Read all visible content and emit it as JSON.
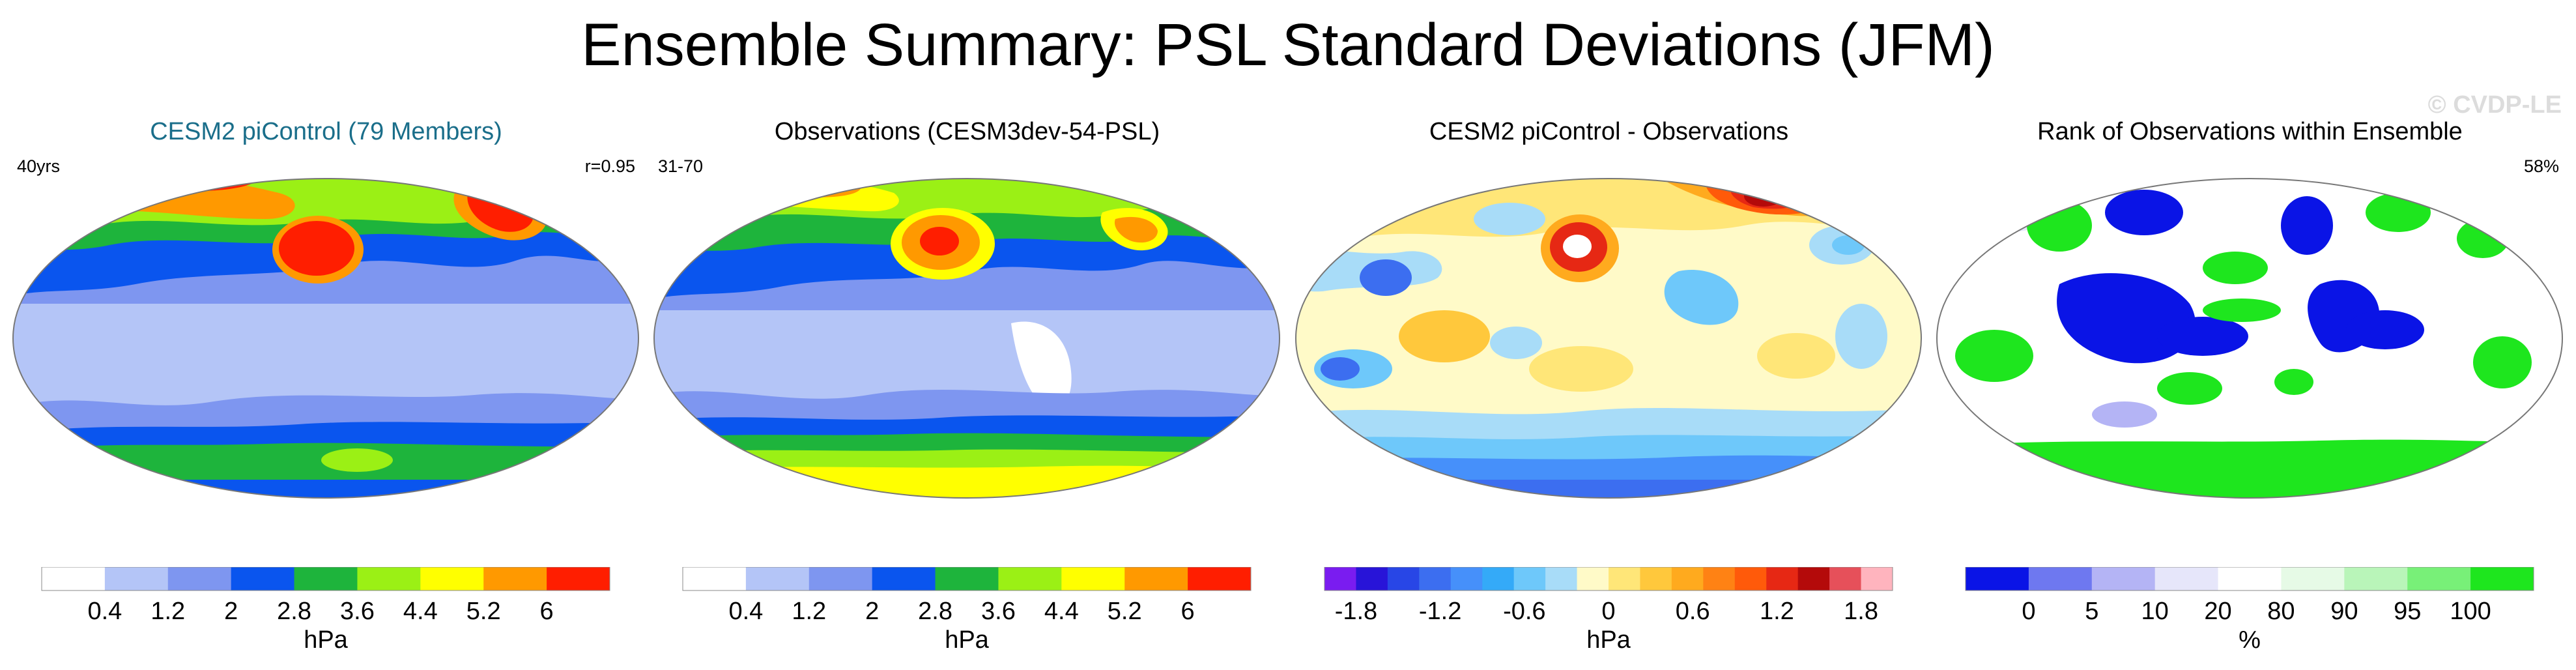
{
  "title": "Ensemble Summary: PSL Standard Deviations (JFM)",
  "watermark": "© CVDP-LE",
  "panels": [
    {
      "title": "CESM2 piControl (79 Members)",
      "left_label": "40yrs",
      "right_label": "r=0.95",
      "colorbar": {
        "colors": [
          "#ffffff",
          "#b4c5f7",
          "#7e96f0",
          "#0a55ee",
          "#1eb43c",
          "#9bf015",
          "#ffff00",
          "#ff9900",
          "#ff1e00"
        ],
        "labels": [
          "0.4",
          "1.2",
          "2",
          "2.8",
          "3.6",
          "4.4",
          "5.2",
          "6"
        ],
        "unit": "hPa"
      }
    },
    {
      "title": "Observations (CESM3dev-54-PSL)",
      "left_label": "31-70",
      "right_label": "",
      "colorbar": {
        "colors": [
          "#ffffff",
          "#b4c5f7",
          "#7e96f0",
          "#0a55ee",
          "#1eb43c",
          "#9bf015",
          "#ffff00",
          "#ff9900",
          "#ff1e00"
        ],
        "labels": [
          "0.4",
          "1.2",
          "2",
          "2.8",
          "3.6",
          "4.4",
          "5.2",
          "6"
        ],
        "unit": "hPa"
      }
    },
    {
      "title": "CESM2 piControl - Observations",
      "left_label": "",
      "right_label": "",
      "colorbar": {
        "colors": [
          "#7a1cf0",
          "#2814d8",
          "#2846e6",
          "#3c6ef0",
          "#4690fa",
          "#34aaf8",
          "#6ec8fa",
          "#a8dcf8",
          "#fffac8",
          "#ffe678",
          "#ffc83c",
          "#ffaa1e",
          "#ff8214",
          "#ff5a0a",
          "#e62814",
          "#b40a0a",
          "#e6505a",
          "#ffb4be"
        ],
        "labels": [
          "-1.8",
          "-1.2",
          "-0.6",
          "0",
          "0.6",
          "1.2",
          "1.8"
        ],
        "unit": "hPa"
      }
    },
    {
      "title": "Rank of Observations within Ensemble",
      "left_label": "",
      "right_label": "58%",
      "colorbar": {
        "colors": [
          "#0a14e6",
          "#6e78f0",
          "#b4b4f5",
          "#e6e6fa",
          "#ffffff",
          "#e6fae6",
          "#b9f5b9",
          "#78f078",
          "#1ee61e"
        ],
        "labels": [
          "0",
          "5",
          "10",
          "20",
          "80",
          "90",
          "95",
          "100"
        ],
        "unit": "%"
      }
    }
  ]
}
